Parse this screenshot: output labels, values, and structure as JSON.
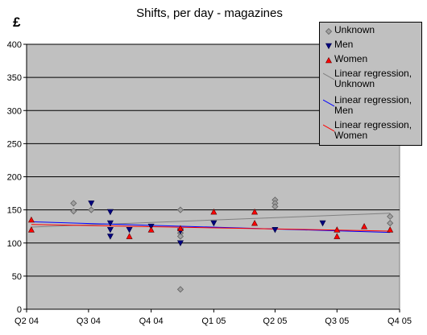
{
  "chart_data": {
    "type": "scatter",
    "title": "Shifts, per day - magazines",
    "ylabel": "£",
    "xlabel": "",
    "ylim": [
      0,
      400
    ],
    "yticks": [
      0,
      50,
      100,
      150,
      200,
      250,
      300,
      350,
      400
    ],
    "xlim": [
      "2004-04-01",
      "2005-10-01"
    ],
    "xticks": [
      {
        "label": "Q2 04",
        "date": "2004-04-01"
      },
      {
        "label": "Q3 04",
        "date": "2004-07-01"
      },
      {
        "label": "Q4 04",
        "date": "2004-10-01"
      },
      {
        "label": "Q1 05",
        "date": "2005-01-01"
      },
      {
        "label": "Q2 05",
        "date": "2005-04-01"
      },
      {
        "label": "Q3 05",
        "date": "2005-07-01"
      },
      {
        "label": "Q4 05",
        "date": "2005-10-01"
      }
    ],
    "grid": true,
    "legend_position": "top-right",
    "plot_background": "#c0c0c0",
    "series": [
      {
        "name": "Unknown",
        "marker": "diamond",
        "color": "#808080",
        "points": [
          [
            "2004-06-09",
            160
          ],
          [
            "2004-06-09",
            148
          ],
          [
            "2004-07-05",
            150
          ],
          [
            "2004-11-13",
            150
          ],
          [
            "2004-11-13",
            120
          ],
          [
            "2004-11-13",
            115
          ],
          [
            "2004-11-13",
            110
          ],
          [
            "2004-11-13",
            30
          ],
          [
            "2005-04-01",
            165
          ],
          [
            "2005-04-01",
            160
          ],
          [
            "2005-04-01",
            155
          ],
          [
            "2005-09-17",
            140
          ],
          [
            "2005-09-17",
            130
          ]
        ]
      },
      {
        "name": "Men",
        "marker": "triangle-down",
        "color": "#000080",
        "points": [
          [
            "2004-07-05",
            160
          ],
          [
            "2004-08-02",
            147
          ],
          [
            "2004-08-02",
            130
          ],
          [
            "2004-08-02",
            120
          ],
          [
            "2004-08-02",
            110
          ],
          [
            "2004-08-30",
            120
          ],
          [
            "2004-10-01",
            125
          ],
          [
            "2004-11-13",
            118
          ],
          [
            "2004-11-13",
            100
          ],
          [
            "2005-01-01",
            130
          ],
          [
            "2005-04-01",
            120
          ],
          [
            "2005-06-10",
            130
          ]
        ]
      },
      {
        "name": "Women",
        "marker": "triangle",
        "color": "#ff0000",
        "points": [
          [
            "2004-04-08",
            135
          ],
          [
            "2004-04-08",
            120
          ],
          [
            "2004-08-30",
            110
          ],
          [
            "2004-10-01",
            120
          ],
          [
            "2004-11-13",
            122
          ],
          [
            "2005-01-01",
            147
          ],
          [
            "2005-03-02",
            147
          ],
          [
            "2005-03-02",
            130
          ],
          [
            "2005-07-01",
            120
          ],
          [
            "2005-07-01",
            110
          ],
          [
            "2005-08-10",
            125
          ],
          [
            "2005-09-17",
            120
          ]
        ]
      },
      {
        "name": "Linear regression, Unknown",
        "type": "line",
        "color": "#808080",
        "points": [
          [
            "2004-04-08",
            124
          ],
          [
            "2005-09-17",
            145
          ]
        ]
      },
      {
        "name": "Linear regression, Men",
        "type": "line",
        "color": "#0000ff",
        "points": [
          [
            "2004-04-08",
            132
          ],
          [
            "2005-09-17",
            116
          ]
        ]
      },
      {
        "name": "Linear regression, Women",
        "type": "line",
        "color": "#ff0000",
        "points": [
          [
            "2004-04-08",
            128
          ],
          [
            "2005-09-17",
            118
          ]
        ]
      }
    ]
  },
  "legend": {
    "items": [
      {
        "label": "Unknown",
        "marker": "diamond",
        "color": "#808080"
      },
      {
        "label": "Men",
        "marker": "triangle-down",
        "color": "#000080"
      },
      {
        "label": "Women",
        "marker": "triangle",
        "color": "#ff0000"
      },
      {
        "label": "Linear regression,\nUnknown",
        "marker": "line",
        "color": "#808080"
      },
      {
        "label": "Linear regression,\nMen",
        "marker": "line",
        "color": "#0000ff"
      },
      {
        "label": "Linear regression,\nWomen",
        "marker": "line",
        "color": "#ff0000"
      }
    ]
  }
}
